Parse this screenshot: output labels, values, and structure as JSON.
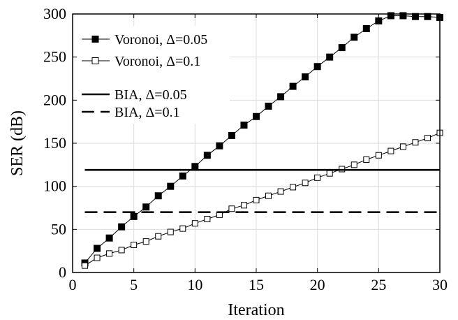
{
  "chart_data": {
    "type": "line",
    "xlabel": "Iteration",
    "ylabel": "SER (dB)",
    "xlim": [
      0,
      30
    ],
    "ylim": [
      0,
      300
    ],
    "xticks": [
      0,
      5,
      10,
      15,
      20,
      25,
      30
    ],
    "yticks": [
      0,
      50,
      100,
      150,
      200,
      250,
      300
    ],
    "grid": true,
    "legend_position": "top-left",
    "series": [
      {
        "name": "Voronoi, Δ=0.05",
        "style": "solid-filled-square",
        "color": "#000000",
        "x": [
          1,
          2,
          3,
          4,
          5,
          6,
          7,
          8,
          9,
          10,
          11,
          12,
          13,
          14,
          15,
          16,
          17,
          18,
          19,
          20,
          21,
          22,
          23,
          24,
          25,
          26,
          27,
          28,
          29,
          30
        ],
        "y": [
          11,
          28,
          40,
          53,
          65,
          76,
          89,
          100,
          112,
          123,
          136,
          147,
          159,
          171,
          181,
          193,
          204,
          216,
          227,
          239,
          250,
          261,
          273,
          283,
          292,
          298,
          298,
          297,
          297,
          296
        ]
      },
      {
        "name": "Voronoi, Δ=0.1",
        "style": "solid-open-square",
        "color": "#000000",
        "x": [
          1,
          2,
          3,
          4,
          5,
          6,
          7,
          8,
          9,
          10,
          11,
          12,
          13,
          14,
          15,
          16,
          17,
          18,
          19,
          20,
          21,
          22,
          23,
          24,
          25,
          26,
          27,
          28,
          29,
          30
        ],
        "y": [
          8,
          17,
          22,
          26,
          32,
          36,
          42,
          47,
          51,
          57,
          62,
          67,
          74,
          78,
          84,
          89,
          94,
          99,
          104,
          110,
          115,
          120,
          125,
          131,
          136,
          141,
          146,
          151,
          156,
          162
        ]
      },
      {
        "name": "BIA, Δ=0.05",
        "style": "solid",
        "color": "#000000",
        "x": [
          1,
          30
        ],
        "y": [
          119,
          119
        ]
      },
      {
        "name": "BIA, Δ=0.1",
        "style": "dashed",
        "color": "#000000",
        "x": [
          1,
          30
        ],
        "y": [
          70,
          70
        ]
      }
    ]
  }
}
